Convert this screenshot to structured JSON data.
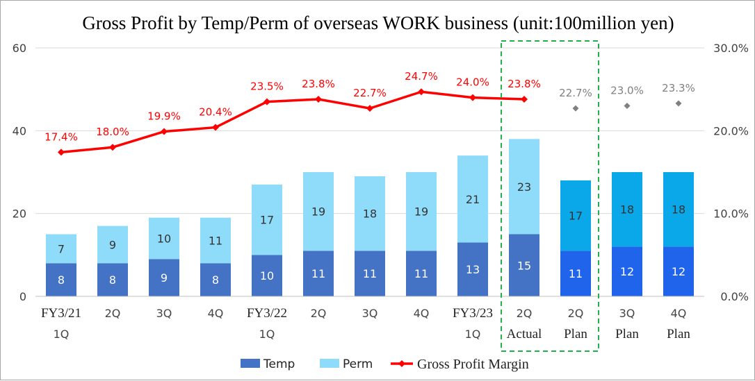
{
  "chart_data": {
    "type": "bar",
    "title": "Gross Profit by Temp/Perm of overseas WORK business (unit:100million yen)",
    "categories": [
      [
        "FY3/21",
        "1Q"
      ],
      [
        "2Q"
      ],
      [
        "3Q"
      ],
      [
        "4Q"
      ],
      [
        "FY3/22",
        "1Q"
      ],
      [
        "2Q"
      ],
      [
        "3Q"
      ],
      [
        "4Q"
      ],
      [
        "FY3/23",
        "1Q"
      ],
      [
        "2Q",
        "Actual"
      ],
      [
        "2Q",
        "Plan"
      ],
      [
        "3Q",
        "Plan"
      ],
      [
        "4Q",
        "Plan"
      ]
    ],
    "series": [
      {
        "name": "Temp",
        "values": [
          8,
          8,
          9,
          8,
          10,
          11,
          11,
          11,
          13,
          15,
          11,
          12,
          12
        ]
      },
      {
        "name": "Perm",
        "values": [
          7,
          9,
          10,
          11,
          17,
          19,
          18,
          19,
          21,
          23,
          17,
          18,
          18
        ]
      },
      {
        "name": "Gross Profit Margin",
        "axis": "right",
        "values": [
          17.4,
          18.0,
          19.9,
          20.4,
          23.5,
          23.8,
          22.7,
          24.7,
          24.0,
          23.8,
          22.7,
          23.0,
          23.3
        ],
        "labels": [
          "17.4%",
          "18.0%",
          "19.9%",
          "20.4%",
          "23.5%",
          "23.8%",
          "22.7%",
          "24.7%",
          "24.0%",
          "23.8%",
          "22.7%",
          "23.0%",
          "23.3%"
        ]
      }
    ],
    "actual_count": 10,
    "ylim": [
      0,
      60
    ],
    "yticks": [
      "0",
      "20",
      "40",
      "60"
    ],
    "y2lim": [
      0,
      30
    ],
    "y2ticks": [
      "0.0%",
      "10.0%",
      "20.0%",
      "30.0%"
    ],
    "grid": true,
    "legend_position": "bottom",
    "highlight_box": {
      "from_index": 9,
      "to_index": 10,
      "style": "dashed",
      "color": "#22b04b"
    },
    "colors": {
      "temp_actual": "#4472c4",
      "perm_actual": "#8fdcfa",
      "temp_plan": "#1f64ea",
      "perm_plan": "#0aa8e8",
      "margin_line": "#ff0000",
      "margin_plan_marker": "#808080",
      "grid": "#d9d9d9"
    }
  }
}
